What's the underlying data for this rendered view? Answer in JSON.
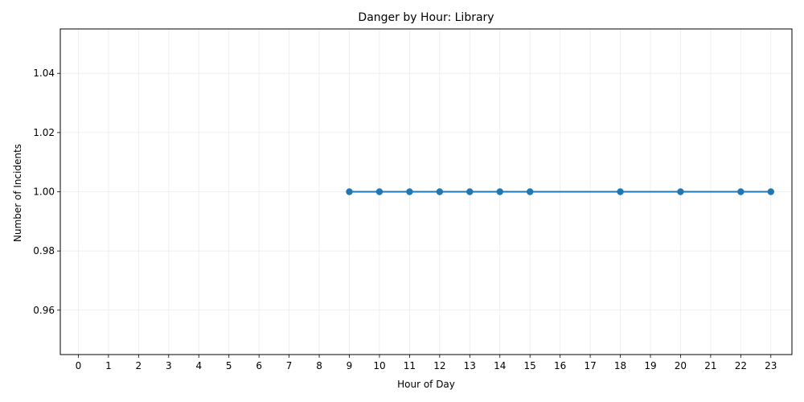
{
  "chart_data": {
    "type": "line",
    "title": "Danger by Hour: Library",
    "xlabel": "Hour of Day",
    "ylabel": "Number of Incidents",
    "x_ticks": [
      0,
      1,
      2,
      3,
      4,
      5,
      6,
      7,
      8,
      9,
      10,
      11,
      12,
      13,
      14,
      15,
      16,
      17,
      18,
      19,
      20,
      21,
      22,
      23
    ],
    "y_ticks": [
      "0.96",
      "0.98",
      "1.00",
      "1.02",
      "1.04"
    ],
    "xlim": [
      -0.6,
      23.7
    ],
    "ylim": [
      0.945,
      1.055
    ],
    "grid": true,
    "series": [
      {
        "x": [
          9,
          10,
          11,
          12,
          13,
          14,
          15,
          18,
          20,
          22,
          23
        ],
        "y": [
          1,
          1,
          1,
          1,
          1,
          1,
          1,
          1,
          1,
          1,
          1
        ],
        "color": "#1f77b4",
        "marker": "circle"
      }
    ]
  }
}
